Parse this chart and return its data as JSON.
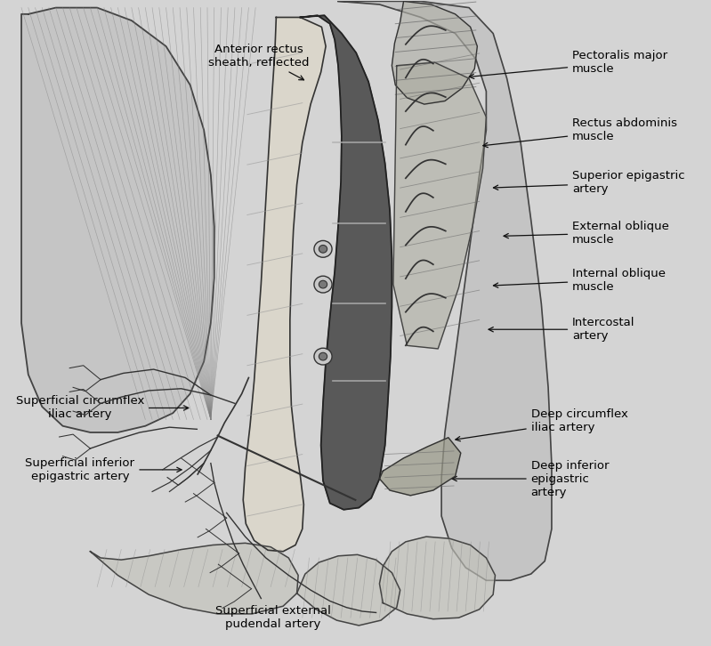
{
  "bg_color": "#d4d4d4",
  "fig_width": 7.99,
  "fig_height": 7.26,
  "dpi": 100,
  "annotation_data": [
    {
      "text": "Anterior rectus\nsheath, reflected",
      "txy": [
        0.365,
        0.915
      ],
      "axy": [
        0.435,
        0.875
      ],
      "ha": "center"
    },
    {
      "text": "Pectoralis major\nmuscle",
      "txy": [
        0.82,
        0.905
      ],
      "axy": [
        0.665,
        0.882
      ],
      "ha": "left"
    },
    {
      "text": "Rectus abdominis\nmuscle",
      "txy": [
        0.82,
        0.8
      ],
      "axy": [
        0.685,
        0.775
      ],
      "ha": "left"
    },
    {
      "text": "Superior epigastric\nartery",
      "txy": [
        0.82,
        0.718
      ],
      "axy": [
        0.7,
        0.71
      ],
      "ha": "left"
    },
    {
      "text": "External oblique\nmuscle",
      "txy": [
        0.82,
        0.64
      ],
      "axy": [
        0.715,
        0.635
      ],
      "ha": "left"
    },
    {
      "text": "Internal oblique\nmuscle",
      "txy": [
        0.82,
        0.567
      ],
      "axy": [
        0.7,
        0.558
      ],
      "ha": "left"
    },
    {
      "text": "Intercostal\nartery",
      "txy": [
        0.82,
        0.49
      ],
      "axy": [
        0.693,
        0.49
      ],
      "ha": "left"
    },
    {
      "text": "Deep circumflex\niliac artery",
      "txy": [
        0.76,
        0.348
      ],
      "axy": [
        0.645,
        0.318
      ],
      "ha": "left"
    },
    {
      "text": "Deep inferior\nepigastric\nartery",
      "txy": [
        0.76,
        0.258
      ],
      "axy": [
        0.64,
        0.258
      ],
      "ha": "left"
    },
    {
      "text": "Superficial circumflex\niliac artery",
      "txy": [
        0.105,
        0.368
      ],
      "axy": [
        0.268,
        0.368
      ],
      "ha": "center"
    },
    {
      "text": "Superficial inferior\nepigastric artery",
      "txy": [
        0.105,
        0.272
      ],
      "axy": [
        0.258,
        0.272
      ],
      "ha": "center"
    },
    {
      "text": "Superficial external\npudendal artery",
      "txy": [
        0.385,
        0.042
      ],
      "axy": null,
      "ha": "center"
    }
  ]
}
